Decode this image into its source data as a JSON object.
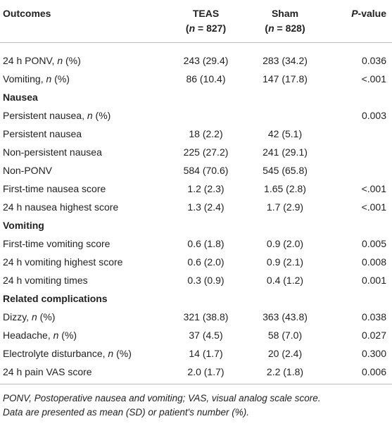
{
  "table": {
    "header": [
      {
        "title": [
          "Outcomes"
        ]
      },
      {
        "title": [
          "TEAS"
        ],
        "n": [
          "(",
          {
            "italic": "n"
          },
          " = 827)"
        ]
      },
      {
        "title": [
          "Sham"
        ],
        "n": [
          "(",
          {
            "italic": "n"
          },
          " = 828)"
        ]
      },
      {
        "title": [
          {
            "italic": "P"
          },
          "-value"
        ]
      }
    ],
    "rows": [
      {
        "label": [
          "24 h PONV, ",
          {
            "italic": "n"
          },
          " (%)"
        ],
        "values": [
          "243 (29.4)",
          "283 (34.2)",
          "0.036"
        ]
      },
      {
        "label": [
          "Vomiting, ",
          {
            "italic": "n"
          },
          " (%)"
        ],
        "values": [
          "86 (10.4)",
          "147 (17.8)",
          "<.001"
        ]
      },
      {
        "section": "Nausea"
      },
      {
        "label": [
          "Persistent nausea, ",
          {
            "italic": "n"
          },
          " (%)"
        ],
        "values": [
          null,
          null,
          "0.003"
        ]
      },
      {
        "label": [
          "Persistent nausea"
        ],
        "values": [
          "18 (2.2)",
          "42 (5.1)",
          null
        ]
      },
      {
        "label": [
          "Non-persistent nausea"
        ],
        "values": [
          "225 (27.2)",
          "241 (29.1)",
          null
        ]
      },
      {
        "label": [
          "Non-PONV"
        ],
        "values": [
          "584 (70.6)",
          "545 (65.8)",
          null
        ]
      },
      {
        "label": [
          "First-time nausea score"
        ],
        "values": [
          "1.2 (2.3)",
          "1.65 (2.8)",
          "<.001"
        ]
      },
      {
        "label": [
          "24 h nausea highest score"
        ],
        "values": [
          "1.3 (2.4)",
          "1.7 (2.9)",
          "<.001"
        ]
      },
      {
        "section": "Vomiting"
      },
      {
        "label": [
          "First-time vomiting score"
        ],
        "values": [
          "0.6 (1.8)",
          "0.9 (2.0)",
          "0.005"
        ]
      },
      {
        "label": [
          "24 h vomiting highest score"
        ],
        "values": [
          "0.6 (2.0)",
          "0.9 (2.1)",
          "0.008"
        ]
      },
      {
        "label": [
          "24 h vomiting times"
        ],
        "values": [
          "0.3 (0.9)",
          "0.4 (1.2)",
          "0.001"
        ]
      },
      {
        "section": "Related complications"
      },
      {
        "label": [
          "Dizzy, ",
          {
            "italic": "n"
          },
          " (%)"
        ],
        "values": [
          "321 (38.8)",
          "363 (43.8)",
          "0.038"
        ]
      },
      {
        "label": [
          "Headache, ",
          {
            "italic": "n"
          },
          " (%)"
        ],
        "values": [
          "37 (4.5)",
          "58 (7.0)",
          "0.027"
        ]
      },
      {
        "label": [
          "Electrolyte disturbance, ",
          {
            "italic": "n"
          },
          " (%)"
        ],
        "values": [
          "14 (1.7)",
          "20 (2.4)",
          "0.300"
        ]
      },
      {
        "label": [
          "24 h pain VAS score"
        ],
        "values": [
          "2.0 (1.7)",
          "2.2 (1.8)",
          "0.006"
        ]
      }
    ],
    "notes": [
      "PONV, Postoperative nausea and vomiting; VAS, visual analog scale score.",
      "Data are presented as mean (SD) or patient's number (%)."
    ]
  }
}
